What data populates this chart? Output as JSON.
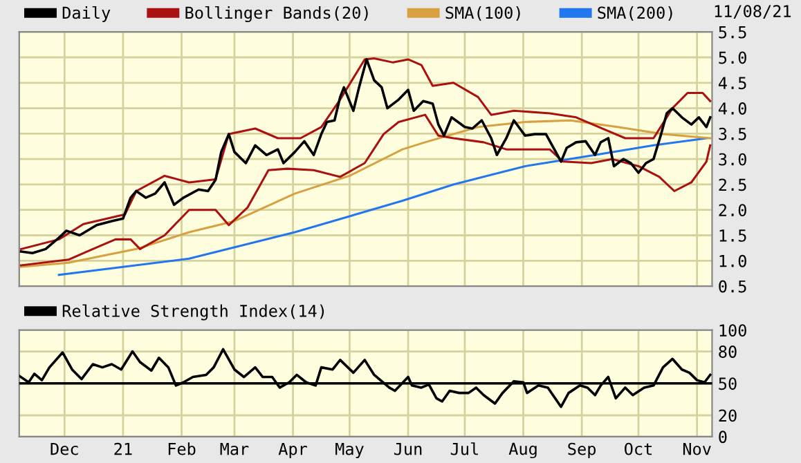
{
  "chart_data": [
    {
      "type": "line",
      "xlim": [
        "2020-11-07",
        "2021-11-09"
      ],
      "ylim": [
        0.5,
        5.5
      ],
      "yticks": [
        0.5,
        {
          "value": 1,
          "label": "1.0"
        },
        1.5,
        {
          "value": 2,
          "label": "2.0"
        },
        2.5,
        {
          "value": 3,
          "label": "3.0"
        },
        3.5,
        {
          "value": 4,
          "label": "4.0"
        },
        4.5,
        {
          "value": 5,
          "label": "5.0"
        },
        5.5
      ],
      "xticks": [
        {
          "value": "2020-12-01",
          "label": null
        },
        {
          "value": "2021-01-01",
          "label": null
        },
        {
          "value": "2021-02-01",
          "label": null
        },
        {
          "value": "2021-03-01",
          "label": null
        },
        {
          "value": "2021-04-01",
          "label": null
        },
        {
          "value": "2021-05-01",
          "label": null
        },
        {
          "value": "2021-06-01",
          "label": null
        },
        {
          "value": "2021-07-01",
          "label": null
        },
        {
          "value": "2021-08-01",
          "label": null
        },
        {
          "value": "2021-09-01",
          "label": null
        },
        {
          "value": "2021-10-01",
          "label": null
        },
        {
          "value": "2021-11-01",
          "label": null
        }
      ],
      "tick_labels": "y",
      "grid": true,
      "legend": "top left",
      "annotations": [
        "11/08/21"
      ],
      "series": [
        {
          "name": "Daily",
          "color": "#000000",
          "x": [
            "2020-11-08",
            "2020-11-14",
            "2020-11-21",
            "2020-11-28",
            "2020-12-02",
            "2020-12-09",
            "2020-12-18",
            "2020-12-26",
            "2021-01-01",
            "2021-01-05",
            "2021-01-08",
            "2021-01-13",
            "2021-01-18",
            "2021-01-23",
            "2021-01-28",
            "2021-02-02",
            "2021-02-10",
            "2021-02-15",
            "2021-02-19",
            "2021-02-22",
            "2021-02-26",
            "2021-03-01",
            "2021-03-07",
            "2021-03-12",
            "2021-03-18",
            "2021-03-24",
            "2021-03-27",
            "2021-04-02",
            "2021-04-07",
            "2021-04-12",
            "2021-04-16",
            "2021-04-19",
            "2021-04-23",
            "2021-04-26",
            "2021-04-28",
            "2021-05-03",
            "2021-05-06",
            "2021-05-10",
            "2021-05-14",
            "2021-05-18",
            "2021-05-21",
            "2021-05-27",
            "2021-06-01",
            "2021-06-04",
            "2021-06-09",
            "2021-06-14",
            "2021-06-17",
            "2021-06-20",
            "2021-06-24",
            "2021-07-01",
            "2021-07-05",
            "2021-07-10",
            "2021-07-15",
            "2021-07-18",
            "2021-07-23",
            "2021-07-27",
            "2021-08-02",
            "2021-08-07",
            "2021-08-13",
            "2021-08-17",
            "2021-08-21",
            "2021-08-24",
            "2021-08-29",
            "2021-09-03",
            "2021-09-08",
            "2021-09-11",
            "2021-09-15",
            "2021-09-18",
            "2021-09-23",
            "2021-09-27",
            "2021-10-01",
            "2021-10-05",
            "2021-10-09",
            "2021-10-13",
            "2021-10-16",
            "2021-10-19",
            "2021-10-24",
            "2021-10-29",
            "2021-11-02",
            "2021-11-06",
            "2021-11-08"
          ],
          "values": [
            1.18,
            1.15,
            1.23,
            1.45,
            1.59,
            1.5,
            1.7,
            1.78,
            1.83,
            2.24,
            2.37,
            2.24,
            2.32,
            2.54,
            2.1,
            2.24,
            2.4,
            2.37,
            2.59,
            3.14,
            3.49,
            3.14,
            2.92,
            3.27,
            3.08,
            3.19,
            2.92,
            3.14,
            3.35,
            3.08,
            3.49,
            3.73,
            3.76,
            4.22,
            4.41,
            3.95,
            4.41,
            4.96,
            4.55,
            4.41,
            4.0,
            4.17,
            4.36,
            3.95,
            4.14,
            4.09,
            3.68,
            3.46,
            3.82,
            3.63,
            3.6,
            3.76,
            3.41,
            3.08,
            3.41,
            3.76,
            3.46,
            3.49,
            3.49,
            3.22,
            2.95,
            3.22,
            3.33,
            3.35,
            3.08,
            3.33,
            3.41,
            2.86,
            3.0,
            2.92,
            2.73,
            2.92,
            3.0,
            3.49,
            3.9,
            4.0,
            3.82,
            3.68,
            3.82,
            3.63,
            3.82
          ]
        },
        {
          "name": "Bollinger Bands(20)",
          "color": "#aa1111",
          "x": [
            "2020-11-08",
            "2020-11-28",
            "2020-12-11",
            "2021-01-02",
            "2021-01-08",
            "2021-01-23",
            "2021-02-05",
            "2021-02-19",
            "2021-02-26",
            "2021-03-12",
            "2021-03-24",
            "2021-04-05",
            "2021-04-16",
            "2021-04-26",
            "2021-05-09",
            "2021-05-14",
            "2021-05-24",
            "2021-06-01",
            "2021-06-08",
            "2021-06-14",
            "2021-06-25",
            "2021-07-08",
            "2021-07-15",
            "2021-07-27",
            "2021-08-15",
            "2021-08-29",
            "2021-09-10",
            "2021-09-24",
            "2021-10-09",
            "2021-10-19",
            "2021-10-27",
            "2021-11-04",
            "2021-11-08"
          ],
          "values": [
            1.23,
            1.42,
            1.72,
            1.91,
            2.37,
            2.67,
            2.54,
            2.6,
            3.49,
            3.6,
            3.41,
            3.41,
            3.63,
            4.17,
            4.96,
            4.98,
            4.9,
            4.96,
            4.85,
            4.44,
            4.5,
            4.22,
            3.87,
            3.95,
            3.9,
            3.82,
            3.63,
            3.41,
            3.41,
            4.0,
            4.3,
            4.3,
            4.14
          ]
        },
        {
          "color": "#aa1111",
          "x": [
            "2020-11-08",
            "2020-12-03",
            "2020-12-16",
            "2020-12-28",
            "2021-01-05",
            "2021-01-10",
            "2021-01-23",
            "2021-02-05",
            "2021-02-19",
            "2021-02-26",
            "2021-03-08",
            "2021-03-19",
            "2021-03-29",
            "2021-04-12",
            "2021-04-26",
            "2021-05-09",
            "2021-05-19",
            "2021-05-27",
            "2021-06-10",
            "2021-06-17",
            "2021-06-25",
            "2021-07-11",
            "2021-07-23",
            "2021-08-15",
            "2021-08-22",
            "2021-09-06",
            "2021-09-17",
            "2021-10-01",
            "2021-10-12",
            "2021-10-20",
            "2021-10-29",
            "2021-11-06",
            "2021-11-08"
          ],
          "values": [
            0.91,
            1.02,
            1.23,
            1.42,
            1.42,
            1.23,
            1.5,
            2.0,
            2.0,
            1.7,
            2.05,
            2.78,
            2.81,
            2.78,
            2.65,
            2.92,
            3.49,
            3.73,
            3.87,
            3.46,
            3.41,
            3.33,
            3.19,
            3.19,
            2.95,
            2.92,
            3.0,
            2.86,
            2.65,
            2.37,
            2.54,
            2.95,
            3.27
          ]
        },
        {
          "name": "SMA(100)",
          "color": "#d8a040",
          "x": [
            "2020-11-08",
            "2020-12-03",
            "2021-01-08",
            "2021-02-05",
            "2021-03-01",
            "2021-04-02",
            "2021-05-01",
            "2021-05-29",
            "2021-06-10",
            "2021-07-08",
            "2021-08-02",
            "2021-08-26",
            "2021-09-20",
            "2021-10-14",
            "2021-11-08"
          ],
          "values": [
            0.88,
            0.96,
            1.23,
            1.56,
            1.78,
            2.32,
            2.67,
            3.19,
            3.33,
            3.63,
            3.73,
            3.76,
            3.63,
            3.49,
            3.41
          ]
        },
        {
          "name": "SMA(200)",
          "color": "#2277ee",
          "x": [
            "2020-11-28",
            "2021-02-05",
            "2021-04-02",
            "2021-05-29",
            "2021-06-25",
            "2021-08-02",
            "2021-09-08",
            "2021-10-09",
            "2021-11-06"
          ],
          "values": [
            0.72,
            1.04,
            1.56,
            2.18,
            2.5,
            2.86,
            3.08,
            3.27,
            3.41
          ]
        }
      ]
    },
    {
      "type": "line",
      "xlim": [
        "2020-11-07",
        "2021-11-09"
      ],
      "ylim": [
        0,
        100
      ],
      "yticks": [
        0,
        20,
        50,
        80,
        100
      ],
      "xticks": [
        {
          "value": "2020-12-01",
          "label": "Dec"
        },
        {
          "value": "2021-01-01",
          "label": "21"
        },
        {
          "value": "2021-02-01",
          "label": "Feb"
        },
        {
          "value": "2021-03-01",
          "label": "Mar"
        },
        {
          "value": "2021-04-01",
          "label": "Apr"
        },
        {
          "value": "2021-05-01",
          "label": "May"
        },
        {
          "value": "2021-06-01",
          "label": "Jun"
        },
        {
          "value": "2021-07-01",
          "label": "Jul"
        },
        {
          "value": "2021-08-01",
          "label": "Aug"
        },
        {
          "value": "2021-09-01",
          "label": "Sep"
        },
        {
          "value": "2021-10-01",
          "label": "Oct"
        },
        {
          "value": "2021-11-01",
          "label": "Nov"
        }
      ],
      "grid": true,
      "legend": "top left",
      "ref_lines": [
        {
          "axis": "y",
          "value": 50,
          "color": "#000000"
        }
      ],
      "series": [
        {
          "name": "Relative Strength Index(14)",
          "color": "#000000",
          "x": [
            "2020-11-07",
            "2020-11-12",
            "2020-11-15",
            "2020-11-19",
            "2020-11-23",
            "2020-11-30",
            "2020-12-05",
            "2020-12-10",
            "2020-12-16",
            "2020-12-21",
            "2020-12-26",
            "2020-12-31",
            "2021-01-06",
            "2021-01-10",
            "2021-01-16",
            "2021-01-20",
            "2021-01-25",
            "2021-01-29",
            "2021-02-02",
            "2021-02-07",
            "2021-02-14",
            "2021-02-18",
            "2021-02-23",
            "2021-03-01",
            "2021-03-06",
            "2021-03-12",
            "2021-03-16",
            "2021-03-21",
            "2021-03-25",
            "2021-03-30",
            "2021-04-03",
            "2021-04-08",
            "2021-04-13",
            "2021-04-16",
            "2021-04-22",
            "2021-04-26",
            "2021-05-03",
            "2021-05-09",
            "2021-05-14",
            "2021-05-22",
            "2021-05-25",
            "2021-06-01",
            "2021-06-03",
            "2021-06-08",
            "2021-06-12",
            "2021-06-16",
            "2021-06-19",
            "2021-06-23",
            "2021-06-28",
            "2021-07-03",
            "2021-07-07",
            "2021-07-11",
            "2021-07-17",
            "2021-07-21",
            "2021-07-27",
            "2021-08-01",
            "2021-08-03",
            "2021-08-09",
            "2021-08-14",
            "2021-08-21",
            "2021-08-25",
            "2021-08-31",
            "2021-09-04",
            "2021-09-08",
            "2021-09-11",
            "2021-09-15",
            "2021-09-19",
            "2021-09-24",
            "2021-09-28",
            "2021-10-04",
            "2021-10-09",
            "2021-10-14",
            "2021-10-19",
            "2021-10-24",
            "2021-10-28",
            "2021-11-01",
            "2021-11-05",
            "2021-11-08"
          ],
          "values": [
            57,
            51,
            59,
            53,
            65,
            79,
            63,
            54,
            68,
            65,
            68,
            63,
            80,
            70,
            62,
            74,
            65,
            48,
            51,
            56,
            58,
            65,
            82,
            63,
            56,
            65,
            56,
            56,
            46,
            51,
            58,
            51,
            48,
            65,
            63,
            72,
            60,
            72,
            58,
            46,
            43,
            56,
            48,
            46,
            49,
            36,
            33,
            43,
            41,
            41,
            46,
            39,
            31,
            41,
            52,
            51,
            41,
            48,
            46,
            28,
            41,
            48,
            46,
            39,
            48,
            56,
            36,
            46,
            39,
            46,
            48,
            65,
            73,
            63,
            60,
            53,
            51,
            58
          ]
        }
      ]
    }
  ]
}
